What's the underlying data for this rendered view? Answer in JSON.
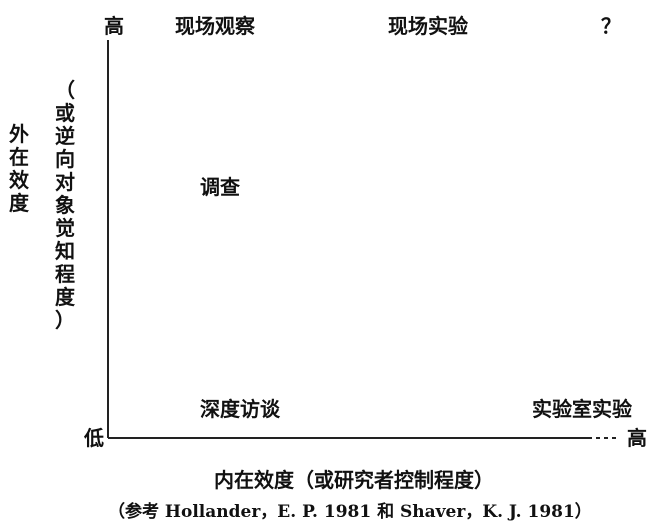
{
  "diagram": {
    "y_axis": {
      "title": "外在效度",
      "subtitle": "（或逆向对象觉知程度）",
      "high": "高",
      "low": "低"
    },
    "x_axis": {
      "title": "内在效度（或研究者控制程度）",
      "high": "高"
    },
    "methods": {
      "field_observation": "现场观察",
      "field_experiment": "现场实验",
      "unknown": "？",
      "survey": "调查",
      "deep_interview": "深度访谈",
      "lab_experiment": "实验室实验"
    },
    "source_note": "（参考 Hollander，E. P. 1981 和 Shaver，K. J. 1981）"
  }
}
